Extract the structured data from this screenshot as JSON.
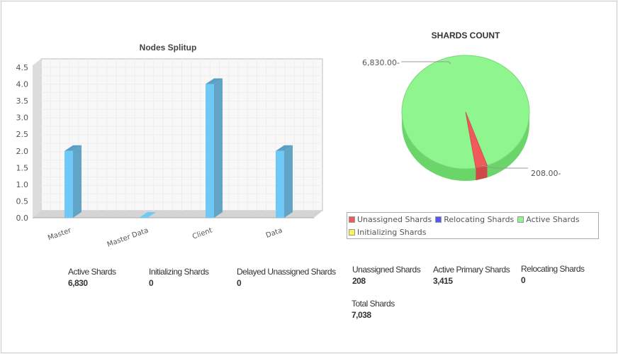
{
  "chart_data": [
    {
      "type": "bar",
      "title": "Nodes Splitup",
      "categories": [
        "Master",
        "Master Data",
        "Client",
        "Data"
      ],
      "values": [
        2,
        0,
        4,
        2
      ],
      "yticks": [
        "0.0",
        "0.5",
        "1.0",
        "1.5",
        "2.0",
        "2.5",
        "3.0",
        "3.5",
        "4.0",
        "4.5"
      ],
      "ylim": [
        0,
        4.5
      ],
      "color": "#6ec9f7",
      "grid": true
    },
    {
      "type": "pie",
      "title": "SHARDS COUNT",
      "slices": [
        {
          "name": "Unassigned Shards",
          "value": 208,
          "label": "208.00-",
          "color": "#f05a5a"
        },
        {
          "name": "Relocating Shards",
          "value": 0,
          "color": "#5656f5"
        },
        {
          "name": "Active Shards",
          "value": 6830,
          "label": "6,830.00-",
          "color": "#8ff58f"
        },
        {
          "name": "Initializing Shards",
          "value": 0,
          "color": "#f5f55a"
        }
      ],
      "legend": "bottom"
    }
  ],
  "stats": [
    {
      "label": "Active Shards",
      "value": "6,830"
    },
    {
      "label": "Initializing Shards",
      "value": "0"
    },
    {
      "label": "Delayed Unassigned Shards",
      "value": "0"
    },
    {
      "label": "Unassigned Shards",
      "value": "208"
    },
    {
      "label": "Active Primary Shards",
      "value": "3,415"
    },
    {
      "label": "Relocating Shards",
      "value": "0"
    },
    {
      "label": "Total Shards",
      "value": "7,038"
    }
  ]
}
